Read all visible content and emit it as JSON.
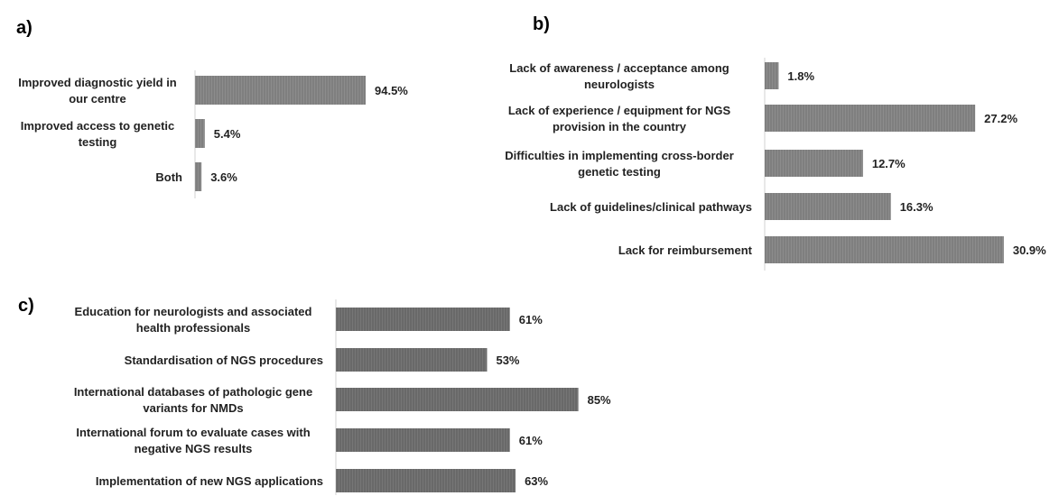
{
  "chart_data": [
    {
      "panel": "a)",
      "type": "bar",
      "orientation": "horizontal",
      "categories": [
        [
          "Improved diagnostic yield in",
          "our centre"
        ],
        [
          "Improved access to genetic",
          "testing"
        ],
        [
          "Both"
        ]
      ],
      "values": [
        94.5,
        5.4,
        3.6
      ],
      "value_labels": [
        "94.5%",
        "5.4%",
        "3.6%"
      ],
      "bar_color": "#7f7f7f",
      "xlim": [
        0,
        100
      ]
    },
    {
      "panel": "b)",
      "type": "bar",
      "orientation": "horizontal",
      "categories": [
        [
          "Lack of awareness / acceptance among",
          "neurologists"
        ],
        [
          "Lack of experience / equipment for NGS",
          "provision in the country"
        ],
        [
          "Difficulties in implementing cross-border",
          "genetic testing"
        ],
        [
          "Lack of guidelines/clinical pathways"
        ],
        [
          "Lack for reimbursement"
        ]
      ],
      "values": [
        1.8,
        27.2,
        12.7,
        16.3,
        30.9
      ],
      "value_labels": [
        "1.8%",
        "27.2%",
        "12.7%",
        "16.3%",
        "30.9%"
      ],
      "bar_color": "#7f7f7f",
      "xlim": [
        0,
        35
      ]
    },
    {
      "panel": "c)",
      "type": "bar",
      "orientation": "horizontal",
      "categories": [
        [
          "Education for neurologists and associated",
          "health professionals"
        ],
        [
          "Standardisation of NGS procedures"
        ],
        [
          "International databases of pathologic gene",
          "variants for NMDs"
        ],
        [
          "International forum to evaluate cases with",
          "negative NGS results"
        ],
        [
          "Implementation of new NGS applications"
        ]
      ],
      "values": [
        61,
        53,
        85,
        61,
        63
      ],
      "value_labels": [
        "61%",
        "53%",
        "85%",
        "61%",
        "63%"
      ],
      "bar_color": "#696969",
      "xlim": [
        0,
        100
      ]
    }
  ]
}
